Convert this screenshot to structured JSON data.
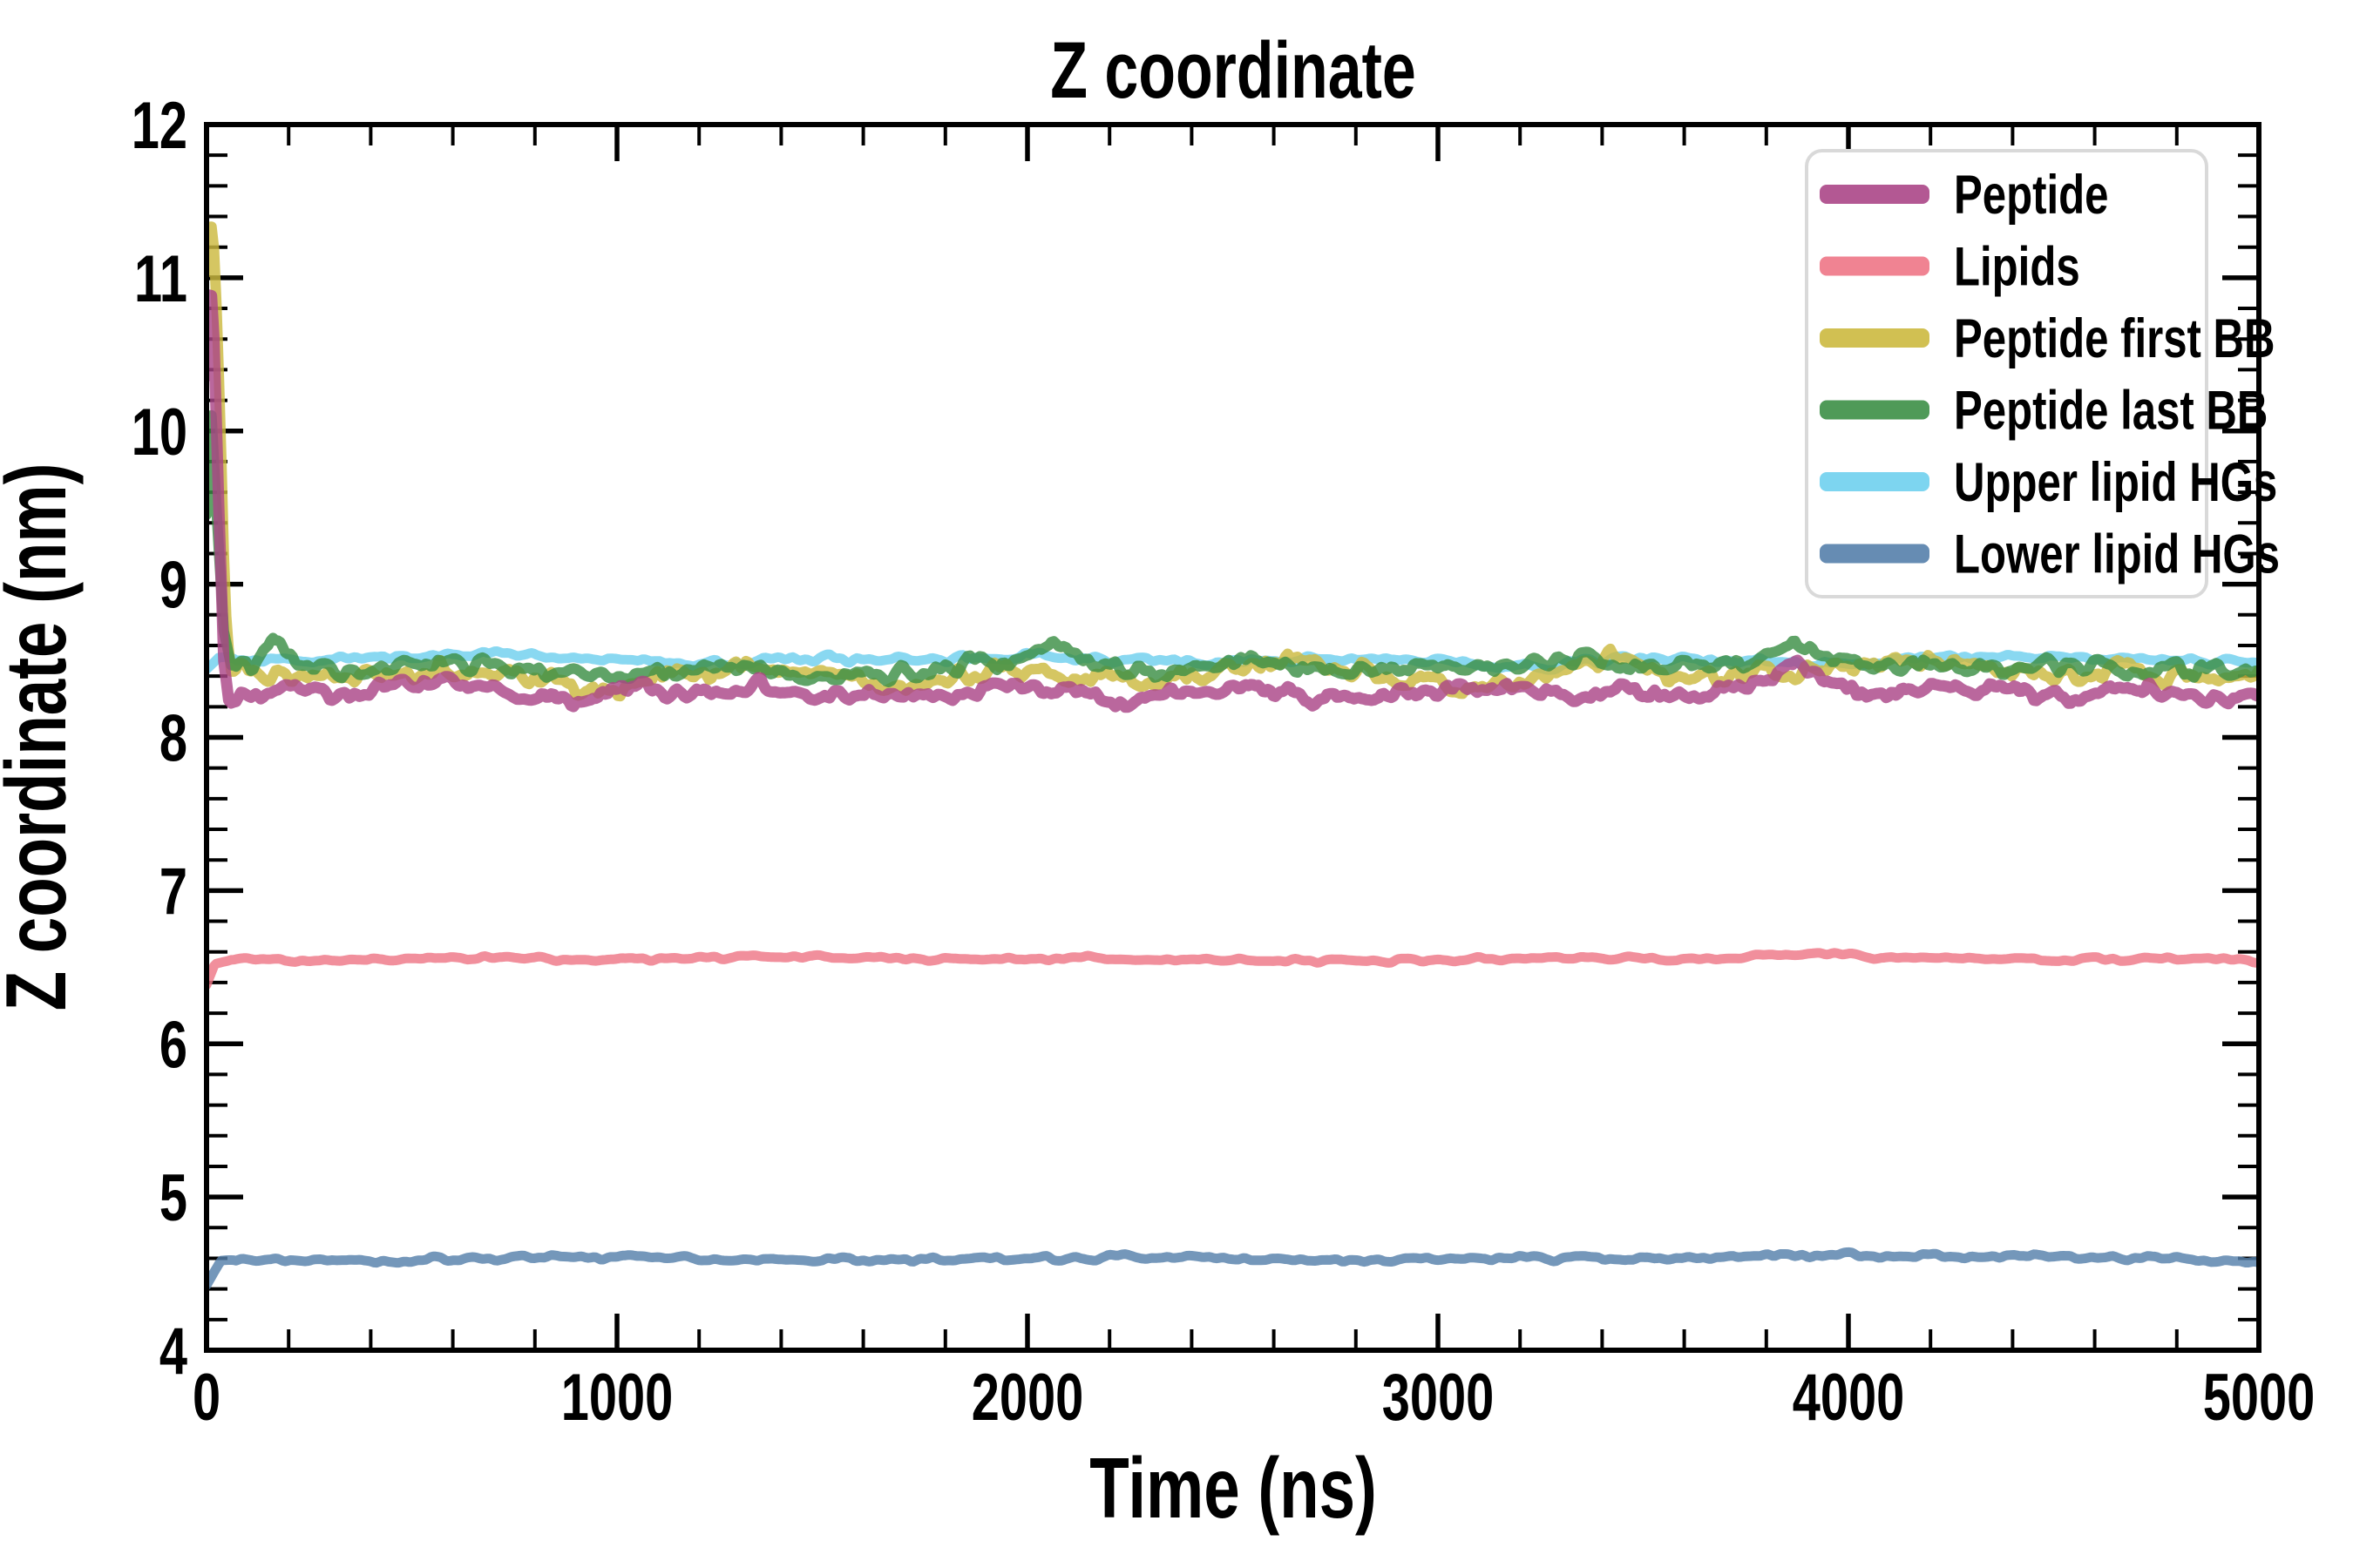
{
  "figure": {
    "background": "#ffffff",
    "spine_color": "#000000",
    "tick_color": "#000000",
    "legend_border_color": "#d9d9d9"
  },
  "chart_data": {
    "type": "line",
    "title": "Z coordinate",
    "xlabel": "Time (ns)",
    "ylabel": "Z coordinate (nm)",
    "xlim": [
      0,
      5000
    ],
    "ylim": [
      4,
      12
    ],
    "x_major_ticks": [
      0,
      1000,
      2000,
      3000,
      4000,
      5000
    ],
    "x_minor_step": 200,
    "y_major_ticks": [
      4,
      5,
      6,
      7,
      8,
      9,
      10,
      11,
      12
    ],
    "y_minor_step": 0.2,
    "grid": false,
    "legend_position": "upper right",
    "series": [
      {
        "name": "Peptide",
        "color": "#ab4687",
        "linewidth": 13,
        "zorder": 6,
        "mean_after_equilibration": 8.3,
        "noise_amplitude": 0.055,
        "noise_wavelength_ns": 28,
        "keypoints": [
          [
            0,
            10.35
          ],
          [
            8,
            11.05
          ],
          [
            18,
            10.6
          ],
          [
            30,
            9.5
          ],
          [
            42,
            8.5
          ],
          [
            55,
            8.22
          ],
          [
            150,
            8.32
          ],
          [
            300,
            8.27
          ],
          [
            450,
            8.33
          ],
          [
            600,
            8.38
          ],
          [
            750,
            8.3
          ],
          [
            900,
            8.24
          ],
          [
            1050,
            8.32
          ],
          [
            1200,
            8.28
          ],
          [
            1350,
            8.34
          ],
          [
            1500,
            8.26
          ],
          [
            1650,
            8.31
          ],
          [
            1800,
            8.27
          ],
          [
            1950,
            8.33
          ],
          [
            2100,
            8.3
          ],
          [
            2250,
            8.24
          ],
          [
            2400,
            8.31
          ],
          [
            2550,
            8.36
          ],
          [
            2700,
            8.24
          ],
          [
            2850,
            8.28
          ],
          [
            3000,
            8.3
          ],
          [
            3150,
            8.34
          ],
          [
            3300,
            8.26
          ],
          [
            3450,
            8.3
          ],
          [
            3600,
            8.25
          ],
          [
            3750,
            8.33
          ],
          [
            3870,
            8.48
          ],
          [
            3950,
            8.33
          ],
          [
            4100,
            8.28
          ],
          [
            4250,
            8.34
          ],
          [
            4400,
            8.3
          ],
          [
            4550,
            8.26
          ],
          [
            4700,
            8.32
          ],
          [
            4850,
            8.28
          ],
          [
            5000,
            8.24
          ]
        ]
      },
      {
        "name": "Lipids",
        "color": "#ee7686",
        "linewidth": 11,
        "zorder": 1,
        "mean_after_equilibration": 6.55,
        "noise_amplitude": 0.018,
        "noise_wavelength_ns": 45,
        "keypoints": [
          [
            0,
            6.38
          ],
          [
            20,
            6.52
          ],
          [
            60,
            6.55
          ],
          [
            300,
            6.54
          ],
          [
            600,
            6.56
          ],
          [
            900,
            6.55
          ],
          [
            1200,
            6.56
          ],
          [
            1500,
            6.57
          ],
          [
            1800,
            6.55
          ],
          [
            2100,
            6.56
          ],
          [
            2400,
            6.55
          ],
          [
            2700,
            6.54
          ],
          [
            3000,
            6.55
          ],
          [
            3300,
            6.56
          ],
          [
            3600,
            6.55
          ],
          [
            3900,
            6.58
          ],
          [
            4200,
            6.56
          ],
          [
            4500,
            6.55
          ],
          [
            4750,
            6.56
          ],
          [
            5000,
            6.54
          ]
        ]
      },
      {
        "name": "Peptide first BB",
        "color": "#ccb93f",
        "linewidth": 12,
        "zorder": 4,
        "mean_after_equilibration": 8.41,
        "noise_amplitude": 0.07,
        "noise_wavelength_ns": 30,
        "keypoints": [
          [
            0,
            11.05
          ],
          [
            8,
            11.45
          ],
          [
            20,
            11.15
          ],
          [
            32,
            10.2
          ],
          [
            45,
            8.9
          ],
          [
            58,
            8.45
          ],
          [
            200,
            8.4
          ],
          [
            400,
            8.42
          ],
          [
            600,
            8.44
          ],
          [
            800,
            8.38
          ],
          [
            1000,
            8.3
          ],
          [
            1100,
            8.44
          ],
          [
            1300,
            8.44
          ],
          [
            1500,
            8.4
          ],
          [
            1700,
            8.36
          ],
          [
            1900,
            8.44
          ],
          [
            2100,
            8.4
          ],
          [
            2300,
            8.38
          ],
          [
            2500,
            8.46
          ],
          [
            2700,
            8.5
          ],
          [
            2900,
            8.4
          ],
          [
            3100,
            8.32
          ],
          [
            3300,
            8.46
          ],
          [
            3420,
            8.54
          ],
          [
            3550,
            8.42
          ],
          [
            3700,
            8.38
          ],
          [
            3900,
            8.44
          ],
          [
            4100,
            8.5
          ],
          [
            4300,
            8.46
          ],
          [
            4500,
            8.4
          ],
          [
            4700,
            8.44
          ],
          [
            4850,
            8.37
          ],
          [
            5000,
            8.41
          ]
        ]
      },
      {
        "name": "Peptide last BB",
        "color": "#3c8f46",
        "linewidth": 12,
        "zorder": 5,
        "mean_after_equilibration": 8.46,
        "noise_amplitude": 0.06,
        "noise_wavelength_ns": 32,
        "keypoints": [
          [
            0,
            9.45
          ],
          [
            12,
            10.1
          ],
          [
            26,
            9.4
          ],
          [
            42,
            8.7
          ],
          [
            60,
            8.48
          ],
          [
            110,
            8.45
          ],
          [
            160,
            8.7
          ],
          [
            220,
            8.47
          ],
          [
            400,
            8.42
          ],
          [
            600,
            8.5
          ],
          [
            800,
            8.44
          ],
          [
            1000,
            8.4
          ],
          [
            1200,
            8.46
          ],
          [
            1400,
            8.42
          ],
          [
            1600,
            8.39
          ],
          [
            1800,
            8.46
          ],
          [
            2000,
            8.52
          ],
          [
            2060,
            8.6
          ],
          [
            2160,
            8.46
          ],
          [
            2350,
            8.42
          ],
          [
            2550,
            8.5
          ],
          [
            2750,
            8.46
          ],
          [
            2950,
            8.42
          ],
          [
            3150,
            8.48
          ],
          [
            3350,
            8.52
          ],
          [
            3550,
            8.44
          ],
          [
            3750,
            8.46
          ],
          [
            3870,
            8.62
          ],
          [
            3960,
            8.5
          ],
          [
            4150,
            8.46
          ],
          [
            4350,
            8.44
          ],
          [
            4550,
            8.48
          ],
          [
            4750,
            8.44
          ],
          [
            5000,
            8.42
          ]
        ]
      },
      {
        "name": "Upper lipid HGs",
        "color": "#6fd0ee",
        "linewidth": 11,
        "zorder": 3,
        "mean_after_equilibration": 8.5,
        "noise_amplitude": 0.03,
        "noise_wavelength_ns": 40,
        "keypoints": [
          [
            0,
            8.45
          ],
          [
            30,
            8.52
          ],
          [
            250,
            8.5
          ],
          [
            500,
            8.53
          ],
          [
            750,
            8.55
          ],
          [
            1000,
            8.5
          ],
          [
            1250,
            8.48
          ],
          [
            1500,
            8.52
          ],
          [
            1750,
            8.5
          ],
          [
            2000,
            8.53
          ],
          [
            2250,
            8.5
          ],
          [
            2500,
            8.48
          ],
          [
            2750,
            8.52
          ],
          [
            3000,
            8.5
          ],
          [
            3250,
            8.46
          ],
          [
            3500,
            8.52
          ],
          [
            3750,
            8.5
          ],
          [
            4000,
            8.48
          ],
          [
            4250,
            8.52
          ],
          [
            4500,
            8.54
          ],
          [
            4750,
            8.5
          ],
          [
            5000,
            8.5
          ]
        ]
      },
      {
        "name": "Lower lipid HGs",
        "color": "#5580ab",
        "linewidth": 11,
        "zorder": 2,
        "mean_after_equilibration": 4.6,
        "noise_amplitude": 0.022,
        "noise_wavelength_ns": 40,
        "keypoints": [
          [
            0,
            4.42
          ],
          [
            35,
            4.58
          ],
          [
            100,
            4.6
          ],
          [
            400,
            4.58
          ],
          [
            800,
            4.61
          ],
          [
            1200,
            4.6
          ],
          [
            1600,
            4.59
          ],
          [
            2000,
            4.6
          ],
          [
            2400,
            4.61
          ],
          [
            2800,
            4.59
          ],
          [
            3200,
            4.6
          ],
          [
            3600,
            4.6
          ],
          [
            4000,
            4.62
          ],
          [
            4400,
            4.61
          ],
          [
            4700,
            4.6
          ],
          [
            5000,
            4.57
          ]
        ]
      }
    ]
  }
}
